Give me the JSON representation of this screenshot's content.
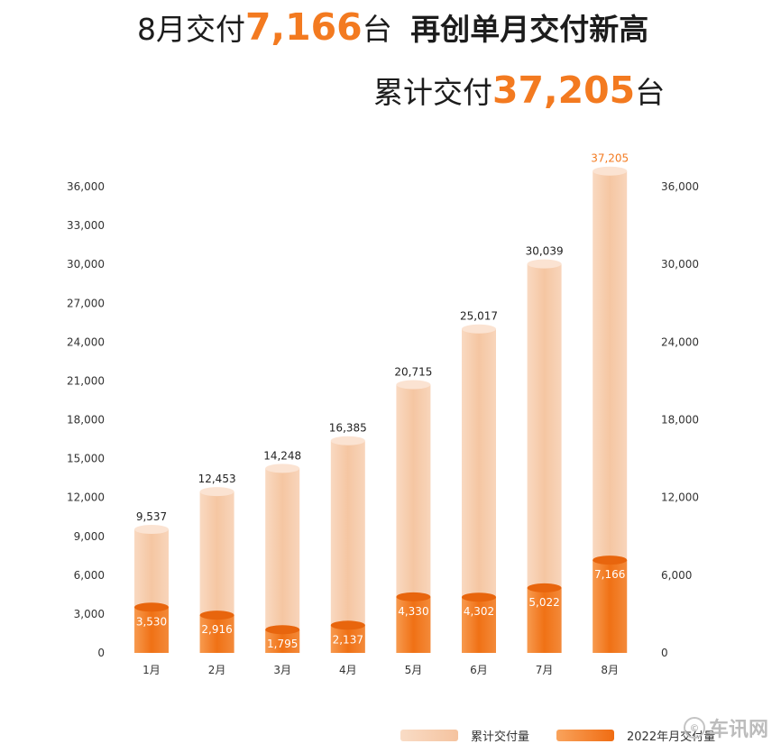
{
  "headline": {
    "line1_prefix": "8月交付",
    "line1_number": "7,166",
    "line1_unit": "台",
    "line1_suffix": "再创单月交付新高",
    "line2_prefix": "累计交付",
    "line2_number": "37,205",
    "line2_unit": "台"
  },
  "chart_data": {
    "type": "bar",
    "categories": [
      "1月",
      "2月",
      "3月",
      "4月",
      "5月",
      "6月",
      "7月",
      "8月"
    ],
    "series": [
      {
        "name": "累计交付量",
        "values": [
          9537,
          12453,
          14248,
          16385,
          20715,
          25017,
          30039,
          37205
        ],
        "labels": [
          "9,537",
          "12,453",
          "14,248",
          "16,385",
          "20,715",
          "25,017",
          "30,039",
          "37,205"
        ],
        "color": "#f6c9a8"
      },
      {
        "name": "2022年月交付量",
        "values": [
          3530,
          2916,
          1795,
          2137,
          4330,
          4302,
          5022,
          7166
        ],
        "labels": [
          "3,530",
          "2,916",
          "1,795",
          "2,137",
          "4,330",
          "4,302",
          "5,022",
          "7,166"
        ],
        "color": "#f37a20"
      }
    ],
    "ylim": [
      0,
      36000
    ],
    "left_axis_ticks": [
      "0",
      "3,000",
      "6,000",
      "9,000",
      "12,000",
      "15,000",
      "18,000",
      "21,000",
      "24,000",
      "27,000",
      "30,000",
      "33,000",
      "36,000"
    ],
    "right_axis_ticks": [
      "0",
      "6,000",
      "12,000",
      "18,000",
      "24,000",
      "30,000",
      "36,000"
    ],
    "legend_position": "bottom-right",
    "accent_color": "#f37a20",
    "grid": false
  },
  "legend": {
    "cumulative": "累计交付量",
    "monthly": "2022年月交付量"
  },
  "watermark": {
    "ring": "©",
    "text": "车讯网"
  }
}
